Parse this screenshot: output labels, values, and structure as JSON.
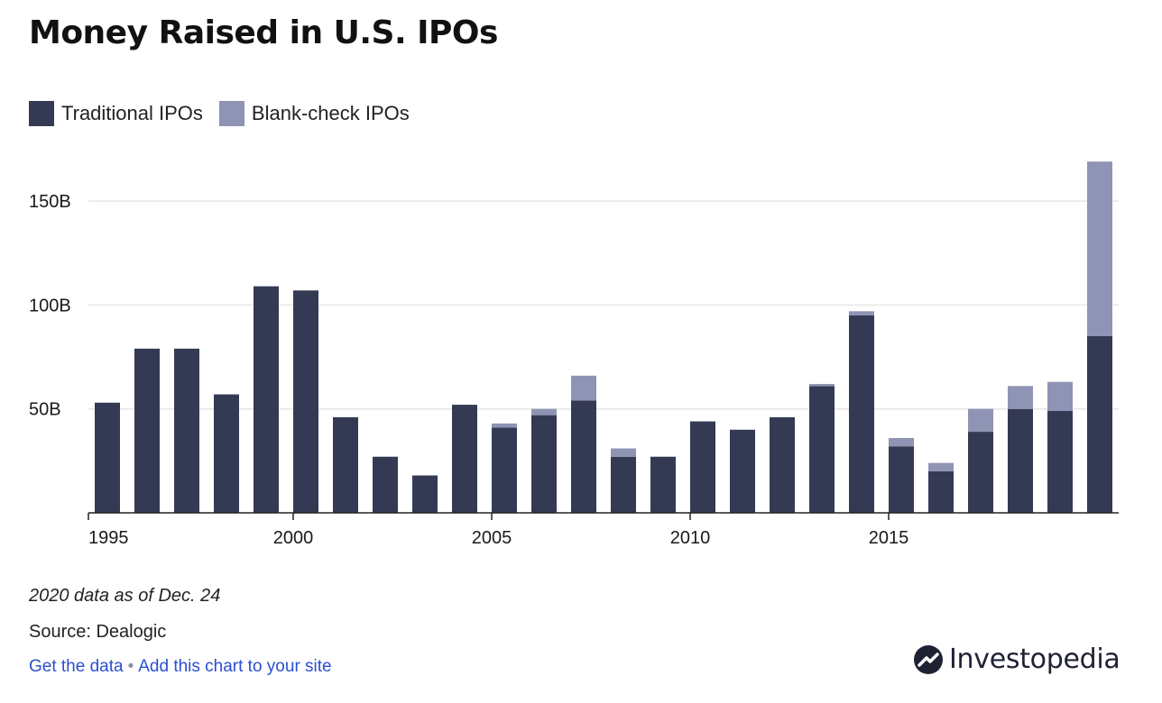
{
  "header": {
    "title": "Money Raised in U.S. IPOs"
  },
  "legend": {
    "items": [
      {
        "label": "Traditional IPOs",
        "color": "#353a54"
      },
      {
        "label": "Blank-check IPOs",
        "color": "#8f94b4"
      }
    ]
  },
  "footer": {
    "note": "2020 data as of Dec. 24",
    "source": "Source: Dealogic",
    "link_get_data": "Get the data",
    "separator": "•",
    "link_add_chart": "Add this chart to your site",
    "brand": "Investopedia"
  },
  "colors": {
    "grid": "#e6e6e6",
    "axis": "#222222",
    "text": "#1a1a1a"
  },
  "chart_data": {
    "type": "bar",
    "stacked": true,
    "title": "Money Raised in U.S. IPOs",
    "x": [
      1995,
      1996,
      1997,
      1998,
      1999,
      2000,
      2001,
      2002,
      2003,
      2004,
      2005,
      2006,
      2007,
      2008,
      2009,
      2010,
      2011,
      2012,
      2013,
      2014,
      2015,
      2016,
      2017,
      2018,
      2019,
      2020
    ],
    "series": [
      {
        "name": "Traditional IPOs",
        "color": "#353a54",
        "values": [
          53,
          79,
          79,
          57,
          109,
          107,
          46,
          27,
          18,
          52,
          41,
          47,
          54,
          27,
          27,
          44,
          40,
          46,
          61,
          95,
          32,
          20,
          39,
          50,
          49,
          85
        ]
      },
      {
        "name": "Blank-check IPOs",
        "color": "#8f94b4",
        "values": [
          0,
          0,
          0,
          0,
          0,
          0,
          0,
          0,
          0,
          0,
          2,
          3,
          12,
          4,
          0,
          0,
          0,
          0,
          1,
          2,
          4,
          4,
          11,
          11,
          14,
          84
        ]
      }
    ],
    "xticks": [
      1995,
      2000,
      2005,
      2010,
      2015
    ],
    "xtick_labels": [
      "1995",
      "2000",
      "2005",
      "2010",
      "2015"
    ],
    "yticks": [
      50,
      100,
      150
    ],
    "ytick_labels": [
      "50B",
      "100B",
      "150B"
    ],
    "ylim": [
      0,
      170
    ],
    "grid": true,
    "legend_position": "top-left"
  }
}
